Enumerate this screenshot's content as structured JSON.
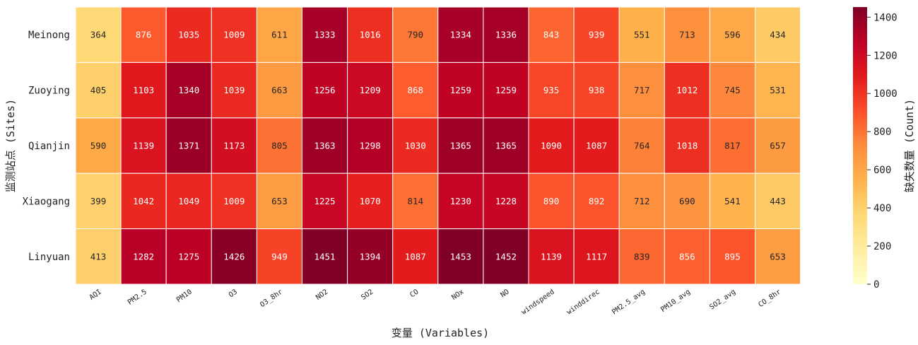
{
  "chart_data": {
    "type": "heatmap",
    "xlabel": "变量 (Variables)",
    "ylabel": "监测站点 (Sites)",
    "colorbar_label": "缺失数量 (Count)",
    "colorscale": "YlOrRd",
    "vmin": 0,
    "vmax": 1453,
    "colorbar_ticks": [
      0,
      200,
      400,
      600,
      800,
      1000,
      1200,
      1400
    ],
    "colorbar_tick_labels": [
      "0",
      "200",
      "400",
      "600",
      "800",
      "1000",
      "1200",
      "1400"
    ],
    "x_categories": [
      "AQI",
      "PM2.5",
      "PM10",
      "O3",
      "O3_8hr",
      "NO2",
      "SO2",
      "CO",
      "NOx",
      "NO",
      "windspeed",
      "winddirec",
      "PM2.5_avg",
      "PM10_avg",
      "SO2_avg",
      "CO_8hr"
    ],
    "y_categories": [
      "Meinong",
      "Zuoying",
      "Qianjin",
      "Xiaogang",
      "Linyuan"
    ],
    "values": [
      [
        364,
        876,
        1035,
        1009,
        611,
        1333,
        1016,
        790,
        1334,
        1336,
        843,
        939,
        551,
        713,
        596,
        434
      ],
      [
        405,
        1103,
        1340,
        1039,
        663,
        1256,
        1209,
        868,
        1259,
        1259,
        935,
        938,
        717,
        1012,
        745,
        531
      ],
      [
        590,
        1139,
        1371,
        1173,
        805,
        1363,
        1298,
        1030,
        1365,
        1365,
        1090,
        1087,
        764,
        1018,
        817,
        657
      ],
      [
        399,
        1042,
        1049,
        1009,
        653,
        1225,
        1070,
        814,
        1230,
        1228,
        890,
        892,
        712,
        690,
        541,
        443
      ],
      [
        413,
        1282,
        1275,
        1426,
        949,
        1451,
        1394,
        1087,
        1453,
        1452,
        1139,
        1117,
        839,
        856,
        895,
        653
      ]
    ],
    "cell_labels": [
      [
        "364",
        "876",
        "1035",
        "1009",
        "611",
        "1333",
        "1016",
        "790",
        "1334",
        "1336",
        "843",
        "939",
        "551",
        "713",
        "596",
        "434"
      ],
      [
        "405",
        "1103",
        "1340",
        "1039",
        "663",
        "1256",
        "1209",
        "868",
        "1259",
        "1259",
        "935",
        "938",
        "717",
        "1012",
        "745",
        "531"
      ],
      [
        "590",
        "1139",
        "1371",
        "1173",
        "805",
        "1363",
        "1298",
        "1030",
        "1365",
        "1365",
        "1090",
        "1087",
        "764",
        "1018",
        "817",
        "657"
      ],
      [
        "399",
        "1042",
        "1049",
        "1009",
        "653",
        "1225",
        "1070",
        "814",
        "1230",
        "1228",
        "890",
        "892",
        "712",
        "690",
        "541",
        "443"
      ],
      [
        "413",
        "1282",
        "1275",
        "1426",
        "949",
        "1451",
        "1394",
        "1087",
        "1453",
        "1452",
        "1139",
        "1117",
        "839",
        "856",
        "895",
        "653"
      ]
    ]
  }
}
